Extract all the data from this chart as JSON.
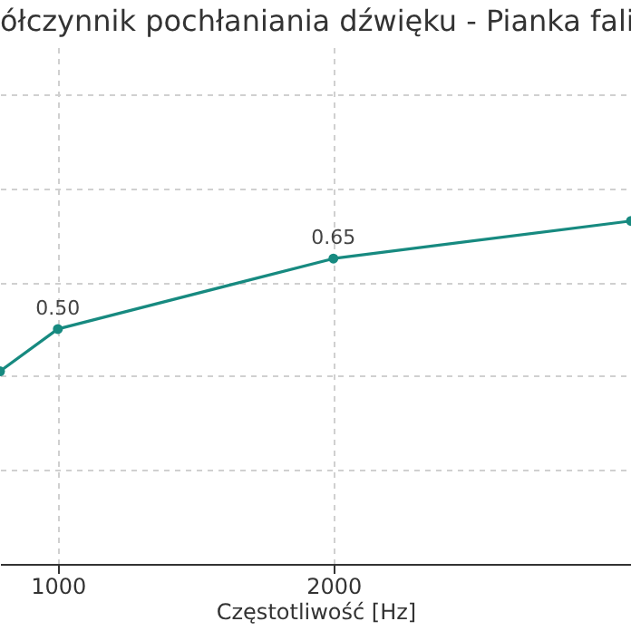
{
  "chart_data": {
    "type": "line",
    "title": "ółczynnik pochłaniania dźwięku - Pianka fali",
    "xlabel": "Częstotliwość [Hz]",
    "x": [
      790,
      1000,
      2000,
      3080
    ],
    "series": [
      {
        "color": "#178a80",
        "values": [
          0.41,
          0.5,
          0.65,
          0.73
        ],
        "value_labels": [
          null,
          "0.50",
          "0.65",
          null
        ]
      }
    ],
    "xlim": [
      790,
      3080
    ],
    "xticks": [
      1000,
      2000
    ],
    "ylim": [
      0,
      1.1
    ],
    "yticks": [
      {
        "value": 0.2,
        "label": null
      },
      {
        "value": 0.4,
        "label": null
      },
      {
        "value": 0.6,
        "label": null
      },
      {
        "value": 0.8,
        "label": null
      },
      {
        "value": 1.0,
        "label": null
      }
    ],
    "tick_labels": "x",
    "grid": true,
    "marker": "circle",
    "line_style": "solid"
  }
}
